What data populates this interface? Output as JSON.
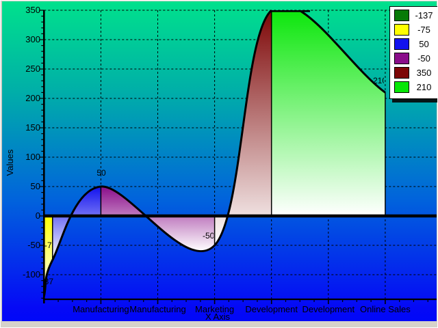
{
  "chart_data": {
    "type": "area",
    "subtype": "spline-area-multicolor",
    "title": "",
    "xlabel": "X Axis",
    "ylabel": "Values",
    "x_categories": [
      "Manufacturing",
      "Manufacturing",
      "Marketing",
      "Development",
      "Development",
      "Online Sales"
    ],
    "y_ticks": [
      350,
      300,
      250,
      200,
      150,
      100,
      50,
      0,
      -50,
      -100
    ],
    "ylim": [
      -142,
      350
    ],
    "grid": "dashed",
    "zero_line": true,
    "legend_position": "top-right",
    "series": [
      {
        "name": "Values",
        "points": [
          {
            "label": "-137",
            "value": -137,
            "x": 0,
            "color": "#077A07"
          },
          {
            "label": "-75",
            "value": -75,
            "x": 0.15,
            "color": "#FFFF00"
          },
          {
            "label": "50",
            "value": 50,
            "x": 1,
            "color": "#1212EE"
          },
          {
            "label": "-50",
            "value": -50,
            "x": 3,
            "color": "#8A0D8A"
          },
          {
            "label": "350",
            "value": 350,
            "x": 4,
            "color": "#7D0606"
          },
          {
            "label": "210",
            "value": 210,
            "x": 6,
            "color": "#06E606"
          }
        ]
      }
    ],
    "legend": [
      {
        "label": "-137",
        "color": "#077A07"
      },
      {
        "label": "-75",
        "color": "#FFFF00"
      },
      {
        "label": "50",
        "color": "#1212EE"
      },
      {
        "label": "-50",
        "color": "#8A0D8A"
      },
      {
        "label": "350",
        "color": "#7D0606"
      },
      {
        "label": "210",
        "color": "#06E606"
      }
    ]
  },
  "colors": {
    "background_top": "#00E18C",
    "background_bottom": "#0008F8",
    "curve": "#000000",
    "grid": "#000000",
    "legend_bg": "#FFFFFF"
  }
}
